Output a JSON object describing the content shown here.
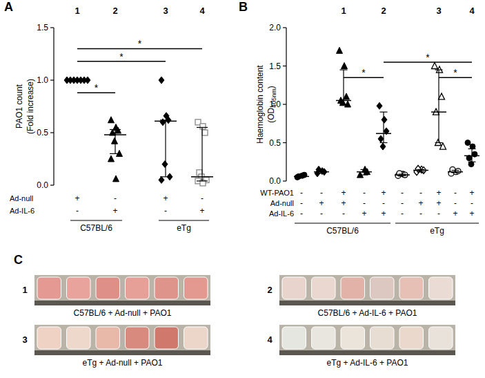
{
  "chart_data": [
    {
      "type": "dot",
      "panel": "A",
      "ylabel": [
        "PAO1 count",
        "(Fold increase)"
      ],
      "ylim": [
        0,
        1.5
      ],
      "yticks": [
        {
          "value": 0,
          "label": "0.0"
        },
        {
          "value": 0.5,
          "label": "0.5"
        },
        {
          "value": 1,
          "label": "1.0"
        },
        {
          "value": 1.5,
          "label": "1.5"
        }
      ],
      "groups": [
        {
          "label": "1",
          "points": [
            1,
            1,
            1,
            1,
            1,
            1,
            1
          ],
          "median": 1,
          "q1": 1,
          "q3": 1,
          "marker": "diamond",
          "color": "#000000"
        },
        {
          "label": "2",
          "points": [
            0.62,
            0.55,
            0.52,
            0.5,
            0.42,
            0.3,
            0.25,
            0.06
          ],
          "median": 0.48,
          "q1": 0.3,
          "q3": 0.53,
          "marker": "triangle",
          "color": "#000000"
        },
        {
          "label": "3",
          "points": [
            1,
            0.66,
            0.62,
            0.6,
            0.2,
            0.08,
            0.05
          ],
          "median": 0.61,
          "q1": 0.08,
          "q3": 0.62,
          "marker": "diamond",
          "color": "#000000"
        },
        {
          "label": "4",
          "points": [
            0.6,
            0.56,
            0.5,
            0.12,
            0.08,
            0.05,
            0.04,
            0.02
          ],
          "median": 0.08,
          "q1": 0.04,
          "q3": 0.55,
          "marker": "square-open",
          "color": "#888888"
        }
      ],
      "rows": [
        {
          "label": "Ad-null",
          "signs": [
            "+",
            "-",
            "+",
            "-"
          ]
        },
        {
          "label": "Ad-IL-6",
          "signs": [
            "-",
            "+",
            "-",
            "+"
          ]
        }
      ],
      "strains": [
        {
          "label": "C57BL/6",
          "from": 0,
          "to": 1
        },
        {
          "label": "eTg",
          "from": 2,
          "to": 3
        }
      ],
      "significance": [
        {
          "from": 0,
          "to": 1,
          "y": 0.88,
          "label": "*"
        },
        {
          "from": 0,
          "to": 2,
          "y": 1.18,
          "label": "*"
        },
        {
          "from": 0,
          "to": 3,
          "y": 1.3,
          "label": "*"
        }
      ]
    },
    {
      "type": "dot",
      "panel": "B",
      "ylabel": [
        "Haemoglobin content",
        {
          "main": "(OD",
          "sub": "405nm",
          "end": ")"
        }
      ],
      "ylim": [
        0,
        2
      ],
      "yticks": [
        {
          "value": 0,
          "label": "0.0"
        },
        {
          "value": 0.5,
          "label": "0.5"
        },
        {
          "value": 1,
          "label": "1.0"
        },
        {
          "value": 1.5,
          "label": "1.5"
        },
        {
          "value": 2,
          "label": "2.0"
        }
      ],
      "groups": [
        {
          "label": null,
          "points": [
            0.05,
            0.07,
            0.08,
            0.06
          ],
          "median": 0.06,
          "q1": 0.05,
          "q3": 0.08,
          "marker": "circle",
          "color": "#000000"
        },
        {
          "label": null,
          "points": [
            0.1,
            0.13,
            0.12,
            0.15
          ],
          "median": 0.12,
          "q1": 0.1,
          "q3": 0.14,
          "marker": "diamond",
          "color": "#000000"
        },
        {
          "label": "1",
          "points": [
            1.7,
            1.5,
            1.1,
            1.05,
            1.02,
            1
          ],
          "median": 1.05,
          "q1": 1,
          "q3": 1.45,
          "marker": "triangle",
          "color": "#000000"
        },
        {
          "label": null,
          "points": [
            0.08,
            0.15,
            0.12
          ],
          "median": 0.12,
          "q1": 0.08,
          "q3": 0.15,
          "marker": "triangle",
          "color": "#000000"
        },
        {
          "label": "2",
          "points": [
            0.98,
            0.8,
            0.65,
            0.55,
            0.45
          ],
          "median": 0.62,
          "q1": 0.5,
          "q3": 0.9,
          "marker": "diamond",
          "color": "#000000"
        },
        {
          "label": null,
          "points": [
            0.07,
            0.09,
            0.08,
            0.1
          ],
          "median": 0.08,
          "q1": 0.07,
          "q3": 0.09,
          "marker": "circle-open",
          "color": "#000000"
        },
        {
          "label": null,
          "points": [
            0.12,
            0.15,
            0.14,
            0.16
          ],
          "median": 0.14,
          "q1": 0.12,
          "q3": 0.15,
          "marker": "diamond-open",
          "color": "#000000"
        },
        {
          "label": "3",
          "points": [
            1.5,
            1.45,
            1.1,
            0.9,
            0.5,
            0.45
          ],
          "median": 0.9,
          "q1": 0.5,
          "q3": 1.45,
          "marker": "triangle-open",
          "color": "#000000"
        },
        {
          "label": null,
          "points": [
            0.1,
            0.12,
            0.13,
            0.15
          ],
          "median": 0.12,
          "q1": 0.11,
          "q3": 0.14,
          "marker": "circle-open",
          "color": "#000000"
        },
        {
          "label": "4",
          "points": [
            0.5,
            0.45,
            0.35,
            0.3,
            0.22
          ],
          "median": 0.33,
          "q1": 0.25,
          "q3": 0.42,
          "marker": "circle",
          "color": "#000000"
        }
      ],
      "rows": [
        {
          "label": "WT-PAO1",
          "signs": [
            "-",
            "-",
            "+",
            "-",
            "+",
            "-",
            "-",
            "+",
            "-",
            "+"
          ]
        },
        {
          "label": "Ad-null",
          "signs": [
            "-",
            "+",
            "+",
            "-",
            "-",
            "-",
            "+",
            "+",
            "-",
            "-"
          ]
        },
        {
          "label": "Ad-IL-6",
          "signs": [
            "-",
            "-",
            "-",
            "+",
            "+",
            "-",
            "-",
            "-",
            "+",
            "+"
          ]
        }
      ],
      "strains": [
        {
          "label": "C57BL/6",
          "from": 0,
          "to": 4
        },
        {
          "label": "eTg",
          "from": 5,
          "to": 9
        }
      ],
      "significance": [
        {
          "from": 2,
          "to": 4,
          "y": 1.35,
          "label": "*"
        },
        {
          "from": 4,
          "to": 9,
          "y": 1.55,
          "label": "*"
        },
        {
          "from": 7,
          "to": 9,
          "y": 1.35,
          "label": "*"
        }
      ]
    }
  ],
  "panel_c": {
    "panel": "C",
    "images": [
      {
        "number": "1",
        "caption": "C57BL/6 + Ad-null + PAO1",
        "tubes": [
          "#e49a92",
          "#e8a49c",
          "#dd8f88",
          "#e6a098",
          "#de938b",
          "#e3998f"
        ]
      },
      {
        "number": "2",
        "caption": "C57BL/6 + Ad-IL-6 + PAO1",
        "tubes": [
          "#e8d4cc",
          "#ead8d0",
          "#e2b2a8",
          "#dcc8c0",
          "#e6c0b4",
          "#eadcd4"
        ]
      },
      {
        "number": "3",
        "caption": "eTg + Ad-null + PAO1",
        "tubes": [
          "#efd2c4",
          "#eed8cc",
          "#e8b8a8",
          "#d88a7e",
          "#d0786c",
          "#ecd6ca"
        ]
      },
      {
        "number": "4",
        "caption": "eTg + Ad-IL-6 + PAO1",
        "tubes": [
          "#e6e6e0",
          "#e8e6de",
          "#ebe4da",
          "#e8ddd2",
          "#ead8cc",
          "#e9e2da"
        ]
      }
    ]
  }
}
